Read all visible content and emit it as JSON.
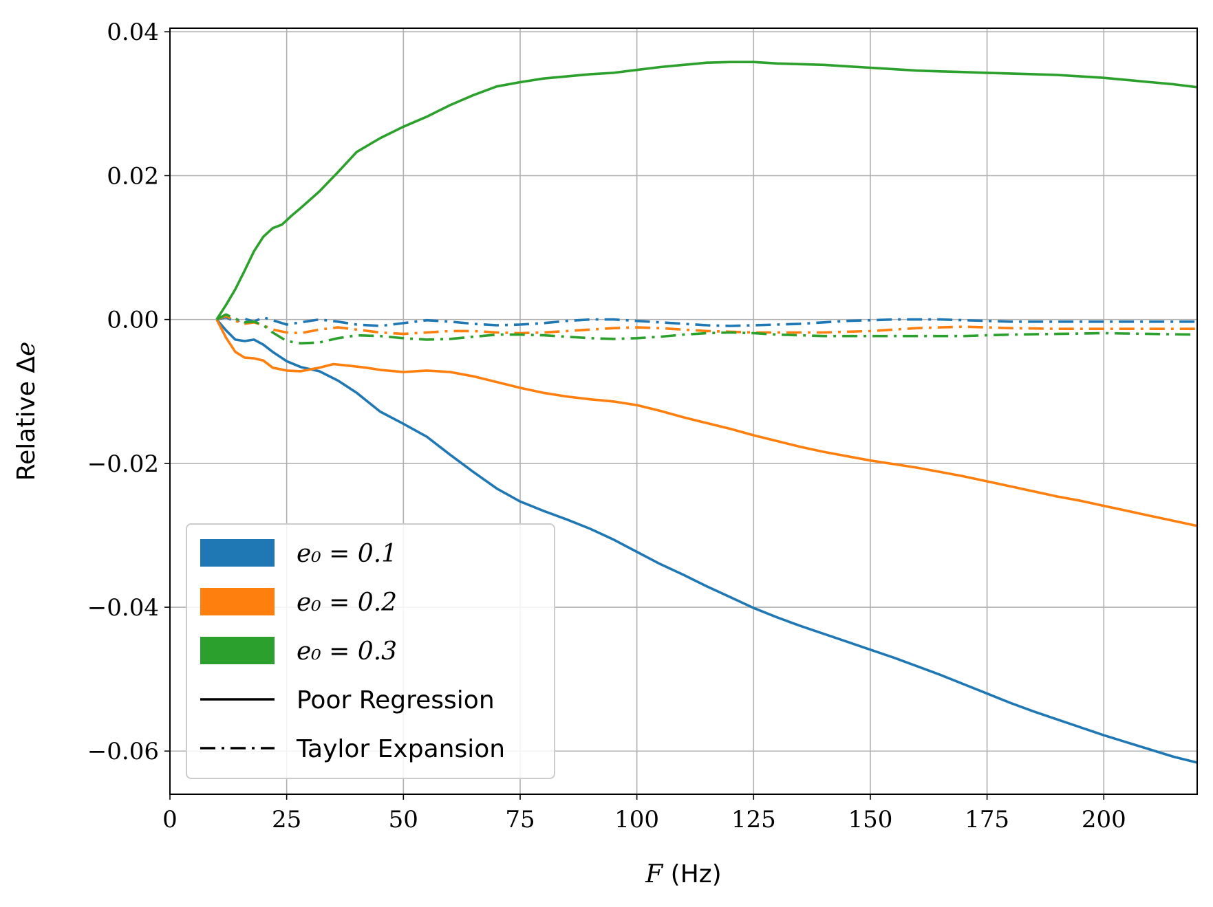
{
  "chart_data": {
    "type": "line",
    "xlabel": "F (Hz)",
    "ylabel": "Relative Δe",
    "xlim": [
      0,
      220
    ],
    "ylim": [
      -0.066,
      0.0405
    ],
    "grid": true,
    "xticks": [
      0,
      25,
      50,
      75,
      100,
      125,
      150,
      175,
      200
    ],
    "xtick_labels": [
      "0",
      "25",
      "50",
      "75",
      "100",
      "125",
      "150",
      "175",
      "200"
    ],
    "yticks": [
      0.04,
      0.02,
      0.0,
      -0.02,
      -0.04,
      -0.06
    ],
    "ytick_labels": [
      "0.04",
      "0.02",
      "0.00",
      "−0.02",
      "−0.04",
      "−0.06"
    ],
    "legend_position": "lower-left",
    "legend": [
      {
        "label": "e₀ = 0.1",
        "kind": "patch",
        "color": "#1f77b4"
      },
      {
        "label": "e₀ = 0.2",
        "kind": "patch",
        "color": "#ff7f0e"
      },
      {
        "label": "e₀ = 0.3",
        "kind": "patch",
        "color": "#2ca02c"
      },
      {
        "label": "Poor Regression",
        "kind": "line",
        "style": "solid",
        "color": "#000000"
      },
      {
        "label": "Taylor Expansion",
        "kind": "line",
        "style": "dashdot",
        "color": "#000000"
      }
    ],
    "series": [
      {
        "color": "#1f77b4",
        "style": "solid",
        "points": [
          [
            10,
            0
          ],
          [
            12,
            -0.0015
          ],
          [
            14,
            -0.0028
          ],
          [
            16,
            -0.003
          ],
          [
            18,
            -0.0028
          ],
          [
            20,
            -0.0035
          ],
          [
            22,
            -0.0045
          ],
          [
            25,
            -0.0058
          ],
          [
            28,
            -0.0066
          ],
          [
            32,
            -0.0072
          ],
          [
            36,
            -0.0085
          ],
          [
            40,
            -0.0102
          ],
          [
            45,
            -0.0128
          ],
          [
            50,
            -0.0145
          ],
          [
            55,
            -0.0163
          ],
          [
            60,
            -0.0188
          ],
          [
            65,
            -0.0212
          ],
          [
            70,
            -0.0235
          ],
          [
            75,
            -0.0253
          ],
          [
            80,
            -0.0266
          ],
          [
            85,
            -0.0278
          ],
          [
            90,
            -0.0291
          ],
          [
            95,
            -0.0306
          ],
          [
            100,
            -0.0323
          ],
          [
            105,
            -0.034
          ],
          [
            110,
            -0.0355
          ],
          [
            115,
            -0.0371
          ],
          [
            120,
            -0.0386
          ],
          [
            125,
            -0.0401
          ],
          [
            130,
            -0.0414
          ],
          [
            135,
            -0.0426
          ],
          [
            140,
            -0.0437
          ],
          [
            145,
            -0.0448
          ],
          [
            150,
            -0.0459
          ],
          [
            155,
            -0.047
          ],
          [
            160,
            -0.0482
          ],
          [
            165,
            -0.0494
          ],
          [
            170,
            -0.0507
          ],
          [
            175,
            -0.052
          ],
          [
            180,
            -0.0533
          ],
          [
            185,
            -0.0545
          ],
          [
            190,
            -0.0556
          ],
          [
            195,
            -0.0567
          ],
          [
            200,
            -0.0578
          ],
          [
            205,
            -0.0588
          ],
          [
            210,
            -0.0598
          ],
          [
            215,
            -0.0608
          ],
          [
            220,
            -0.0616
          ]
        ]
      },
      {
        "color": "#ff7f0e",
        "style": "solid",
        "points": [
          [
            10,
            0
          ],
          [
            12,
            -0.0025
          ],
          [
            14,
            -0.0045
          ],
          [
            16,
            -0.0053
          ],
          [
            18,
            -0.0054
          ],
          [
            20,
            -0.0057
          ],
          [
            22,
            -0.0067
          ],
          [
            25,
            -0.0071
          ],
          [
            28,
            -0.0072
          ],
          [
            32,
            -0.0067
          ],
          [
            35,
            -0.0062
          ],
          [
            38,
            -0.0064
          ],
          [
            42,
            -0.0067
          ],
          [
            45,
            -0.007
          ],
          [
            50,
            -0.0073
          ],
          [
            55,
            -0.0071
          ],
          [
            60,
            -0.0073
          ],
          [
            65,
            -0.0079
          ],
          [
            70,
            -0.0087
          ],
          [
            75,
            -0.0095
          ],
          [
            80,
            -0.0102
          ],
          [
            85,
            -0.0107
          ],
          [
            90,
            -0.0111
          ],
          [
            95,
            -0.0114
          ],
          [
            100,
            -0.0119
          ],
          [
            105,
            -0.0127
          ],
          [
            110,
            -0.0136
          ],
          [
            115,
            -0.0144
          ],
          [
            120,
            -0.0152
          ],
          [
            125,
            -0.0161
          ],
          [
            130,
            -0.0169
          ],
          [
            135,
            -0.0177
          ],
          [
            140,
            -0.0184
          ],
          [
            145,
            -0.019
          ],
          [
            150,
            -0.0196
          ],
          [
            155,
            -0.0201
          ],
          [
            160,
            -0.0206
          ],
          [
            165,
            -0.0212
          ],
          [
            170,
            -0.0218
          ],
          [
            175,
            -0.0225
          ],
          [
            180,
            -0.0232
          ],
          [
            185,
            -0.0239
          ],
          [
            190,
            -0.0246
          ],
          [
            195,
            -0.0252
          ],
          [
            200,
            -0.0259
          ],
          [
            205,
            -0.0266
          ],
          [
            210,
            -0.0273
          ],
          [
            215,
            -0.028
          ],
          [
            220,
            -0.0287
          ]
        ]
      },
      {
        "color": "#2ca02c",
        "style": "solid",
        "points": [
          [
            10,
            0
          ],
          [
            12,
            0.002
          ],
          [
            14,
            0.0042
          ],
          [
            16,
            0.0068
          ],
          [
            18,
            0.0095
          ],
          [
            20,
            0.0115
          ],
          [
            22,
            0.0127
          ],
          [
            24,
            0.0132
          ],
          [
            26,
            0.0144
          ],
          [
            28,
            0.0155
          ],
          [
            32,
            0.0178
          ],
          [
            36,
            0.0205
          ],
          [
            40,
            0.0233
          ],
          [
            45,
            0.0252
          ],
          [
            50,
            0.0268
          ],
          [
            55,
            0.0282
          ],
          [
            60,
            0.0298
          ],
          [
            65,
            0.0312
          ],
          [
            70,
            0.0324
          ],
          [
            75,
            0.033
          ],
          [
            80,
            0.0335
          ],
          [
            85,
            0.0338
          ],
          [
            90,
            0.0341
          ],
          [
            95,
            0.0343
          ],
          [
            100,
            0.0347
          ],
          [
            105,
            0.0351
          ],
          [
            110,
            0.0354
          ],
          [
            115,
            0.0357
          ],
          [
            120,
            0.0358
          ],
          [
            125,
            0.0358
          ],
          [
            130,
            0.0356
          ],
          [
            135,
            0.0355
          ],
          [
            140,
            0.0354
          ],
          [
            145,
            0.0352
          ],
          [
            150,
            0.035
          ],
          [
            155,
            0.0348
          ],
          [
            160,
            0.0346
          ],
          [
            165,
            0.0345
          ],
          [
            170,
            0.0344
          ],
          [
            175,
            0.0343
          ],
          [
            180,
            0.0342
          ],
          [
            185,
            0.0341
          ],
          [
            190,
            0.034
          ],
          [
            195,
            0.0338
          ],
          [
            200,
            0.0336
          ],
          [
            205,
            0.0333
          ],
          [
            210,
            0.033
          ],
          [
            215,
            0.0327
          ],
          [
            220,
            0.0323
          ]
        ]
      },
      {
        "color": "#1f77b4",
        "style": "dashdot",
        "points": [
          [
            10,
            0
          ],
          [
            12,
            0.0003
          ],
          [
            14,
            -0.0003
          ],
          [
            16,
            0.0001
          ],
          [
            18,
            -0.0003
          ],
          [
            20,
            0.0003
          ],
          [
            22,
            -0.0001
          ],
          [
            25,
            -0.0007
          ],
          [
            28,
            -0.0004
          ],
          [
            32,
            0.0
          ],
          [
            36,
            -0.0003
          ],
          [
            40,
            -0.0007
          ],
          [
            45,
            -0.0009
          ],
          [
            50,
            -0.0005
          ],
          [
            55,
            -0.0001
          ],
          [
            60,
            -0.0003
          ],
          [
            65,
            -0.0006
          ],
          [
            70,
            -0.0008
          ],
          [
            75,
            -0.0007
          ],
          [
            80,
            -0.0005
          ],
          [
            85,
            -0.0002
          ],
          [
            90,
            0.0
          ],
          [
            95,
            0.0
          ],
          [
            100,
            -0.0002
          ],
          [
            105,
            -0.0004
          ],
          [
            110,
            -0.0006
          ],
          [
            115,
            -0.0008
          ],
          [
            120,
            -0.0009
          ],
          [
            125,
            -0.0008
          ],
          [
            130,
            -0.0007
          ],
          [
            135,
            -0.0006
          ],
          [
            140,
            -0.0004
          ],
          [
            145,
            -0.0002
          ],
          [
            150,
            -0.0001
          ],
          [
            155,
            0.0
          ],
          [
            160,
            0.0
          ],
          [
            165,
            0.0
          ],
          [
            170,
            -0.0001
          ],
          [
            175,
            -0.0002
          ],
          [
            180,
            -0.0003
          ],
          [
            190,
            -0.0003
          ],
          [
            200,
            -0.0003
          ],
          [
            210,
            -0.0003
          ],
          [
            220,
            -0.0003
          ]
        ]
      },
      {
        "color": "#ff7f0e",
        "style": "dashdot",
        "points": [
          [
            10,
            0
          ],
          [
            12,
            0.0005
          ],
          [
            14,
            -0.0002
          ],
          [
            16,
            -0.0006
          ],
          [
            18,
            -0.0004
          ],
          [
            20,
            -0.0008
          ],
          [
            22,
            -0.0014
          ],
          [
            25,
            -0.0018
          ],
          [
            28,
            -0.0019
          ],
          [
            32,
            -0.0014
          ],
          [
            36,
            -0.0011
          ],
          [
            40,
            -0.0014
          ],
          [
            45,
            -0.0018
          ],
          [
            50,
            -0.002
          ],
          [
            55,
            -0.0018
          ],
          [
            60,
            -0.0016
          ],
          [
            65,
            -0.0016
          ],
          [
            70,
            -0.0018
          ],
          [
            75,
            -0.0019
          ],
          [
            80,
            -0.0018
          ],
          [
            85,
            -0.0016
          ],
          [
            90,
            -0.0014
          ],
          [
            95,
            -0.0012
          ],
          [
            100,
            -0.0011
          ],
          [
            105,
            -0.0012
          ],
          [
            110,
            -0.0014
          ],
          [
            115,
            -0.0016
          ],
          [
            120,
            -0.0017
          ],
          [
            125,
            -0.0018
          ],
          [
            130,
            -0.0018
          ],
          [
            135,
            -0.0018
          ],
          [
            140,
            -0.0018
          ],
          [
            145,
            -0.0017
          ],
          [
            150,
            -0.0016
          ],
          [
            155,
            -0.0014
          ],
          [
            160,
            -0.0012
          ],
          [
            165,
            -0.0011
          ],
          [
            170,
            -0.001
          ],
          [
            175,
            -0.0011
          ],
          [
            180,
            -0.0012
          ],
          [
            190,
            -0.0013
          ],
          [
            200,
            -0.0013
          ],
          [
            210,
            -0.0013
          ],
          [
            220,
            -0.0013
          ]
        ]
      },
      {
        "color": "#2ca02c",
        "style": "dashdot",
        "points": [
          [
            10,
            0
          ],
          [
            12,
            0.0007
          ],
          [
            14,
            0.0001
          ],
          [
            16,
            -0.0004
          ],
          [
            18,
            -0.0003
          ],
          [
            20,
            -0.0008
          ],
          [
            22,
            -0.0018
          ],
          [
            25,
            -0.003
          ],
          [
            28,
            -0.0033
          ],
          [
            32,
            -0.0032
          ],
          [
            36,
            -0.0026
          ],
          [
            40,
            -0.0022
          ],
          [
            45,
            -0.0023
          ],
          [
            50,
            -0.0026
          ],
          [
            55,
            -0.0028
          ],
          [
            60,
            -0.0027
          ],
          [
            65,
            -0.0024
          ],
          [
            70,
            -0.0021
          ],
          [
            75,
            -0.0021
          ],
          [
            80,
            -0.0022
          ],
          [
            85,
            -0.0024
          ],
          [
            90,
            -0.0026
          ],
          [
            95,
            -0.0027
          ],
          [
            100,
            -0.0026
          ],
          [
            105,
            -0.0024
          ],
          [
            110,
            -0.0021
          ],
          [
            115,
            -0.0019
          ],
          [
            120,
            -0.0018
          ],
          [
            125,
            -0.0019
          ],
          [
            130,
            -0.0021
          ],
          [
            135,
            -0.0022
          ],
          [
            140,
            -0.0023
          ],
          [
            145,
            -0.0023
          ],
          [
            150,
            -0.0023
          ],
          [
            155,
            -0.0023
          ],
          [
            160,
            -0.0023
          ],
          [
            165,
            -0.0023
          ],
          [
            170,
            -0.0023
          ],
          [
            175,
            -0.0022
          ],
          [
            180,
            -0.0021
          ],
          [
            190,
            -0.002
          ],
          [
            200,
            -0.0019
          ],
          [
            210,
            -0.002
          ],
          [
            220,
            -0.0021
          ]
        ]
      }
    ]
  }
}
